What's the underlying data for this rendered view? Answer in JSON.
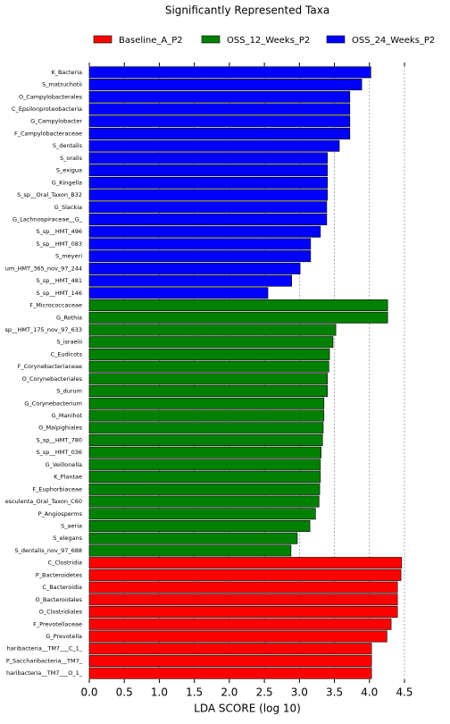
{
  "chart_data": {
    "type": "barh",
    "title": "Significantly Represented Taxa",
    "xlabel": "LDA SCORE (log 10)",
    "xlim": [
      0,
      4.5
    ],
    "xticks": [
      {
        "value": 0,
        "label": "0.0"
      },
      {
        "value": 0.5,
        "label": "0.5"
      },
      {
        "value": 1,
        "label": "1.0"
      },
      {
        "value": 1.5,
        "label": "1.5"
      },
      {
        "value": 2,
        "label": "2.0"
      },
      {
        "value": 2.5,
        "label": "2.5"
      },
      {
        "value": 3,
        "label": "3.0"
      },
      {
        "value": 3.5,
        "label": "3.5"
      },
      {
        "value": 4,
        "label": "4.0"
      },
      {
        "value": 4.5,
        "label": "4.5"
      }
    ],
    "grid": true,
    "series": [
      {
        "name": "Baseline_A_P2",
        "color": "#ff0000",
        "categories": [
          "C_Clostridia",
          "P_Bacteroidetes",
          "C_Bacteroidia",
          "O_Bacteroidales",
          "O_Clostridiales",
          "F_Prevotellaceae",
          "G_Prevotella",
          "haribacteria__TM7___C_1_",
          "P_Saccharibacteria__TM7_",
          "haribacteria__TM7___O_1_"
        ],
        "values": [
          4.46,
          4.45,
          4.4,
          4.4,
          4.4,
          4.31,
          4.25,
          4.03,
          4.03,
          4.03
        ]
      },
      {
        "name": "OSS_12_Weeks_P2",
        "color": "#008000",
        "categories": [
          "F_Micrococcaceae",
          "G_Rothia",
          "sp__HMT_175_nov_97_633",
          "S_israelii",
          "C_Eudicots",
          "F_Corynebacteriaceae",
          "O_Corynebacteriales",
          "S_durum",
          "G_Corynebacterium",
          "G_Manihot",
          "O_Malpighiales",
          "S_sp__HMT_780",
          "S_sp__HMT_036",
          "G_Veillonella",
          "K_Plantae",
          "F_Euphorbiaceae",
          "esculenta_Oral_Taxon_C60",
          "P_Angiosperms",
          "S_aeria",
          "S_elegans",
          "S_dentalis_nov_97_688"
        ],
        "values": [
          4.26,
          4.26,
          3.52,
          3.48,
          3.43,
          3.42,
          3.4,
          3.4,
          3.35,
          3.35,
          3.34,
          3.33,
          3.31,
          3.3,
          3.3,
          3.29,
          3.28,
          3.23,
          3.15,
          2.97,
          2.88
        ]
      },
      {
        "name": "OSS_24_Weeks_P2",
        "color": "#0000ff",
        "categories": [
          "K_Bacteria",
          "S_matruchotii",
          "O_Campylobacterales",
          "C_Epsilonproteobacteria",
          "G_Campylobacter",
          "F_Campylobacteraceae",
          "S_dentalis",
          "S_oralis",
          "S_exigua",
          "G_Kingella",
          "S_sp__Oral_Taxon_B32",
          "G_Slackia",
          "G_Lachnospiraceae__G_",
          "S_sp__HMT_496",
          "S_sp__HMT_083",
          "S_meyeri",
          "um_HMT_365_nov_97_244",
          "S_sp__HMT_481",
          "S_sp__HMT_146"
        ],
        "values": [
          4.02,
          3.89,
          3.72,
          3.72,
          3.72,
          3.72,
          3.57,
          3.4,
          3.4,
          3.4,
          3.4,
          3.39,
          3.39,
          3.3,
          3.16,
          3.16,
          3.01,
          2.89,
          2.55
        ]
      }
    ]
  }
}
